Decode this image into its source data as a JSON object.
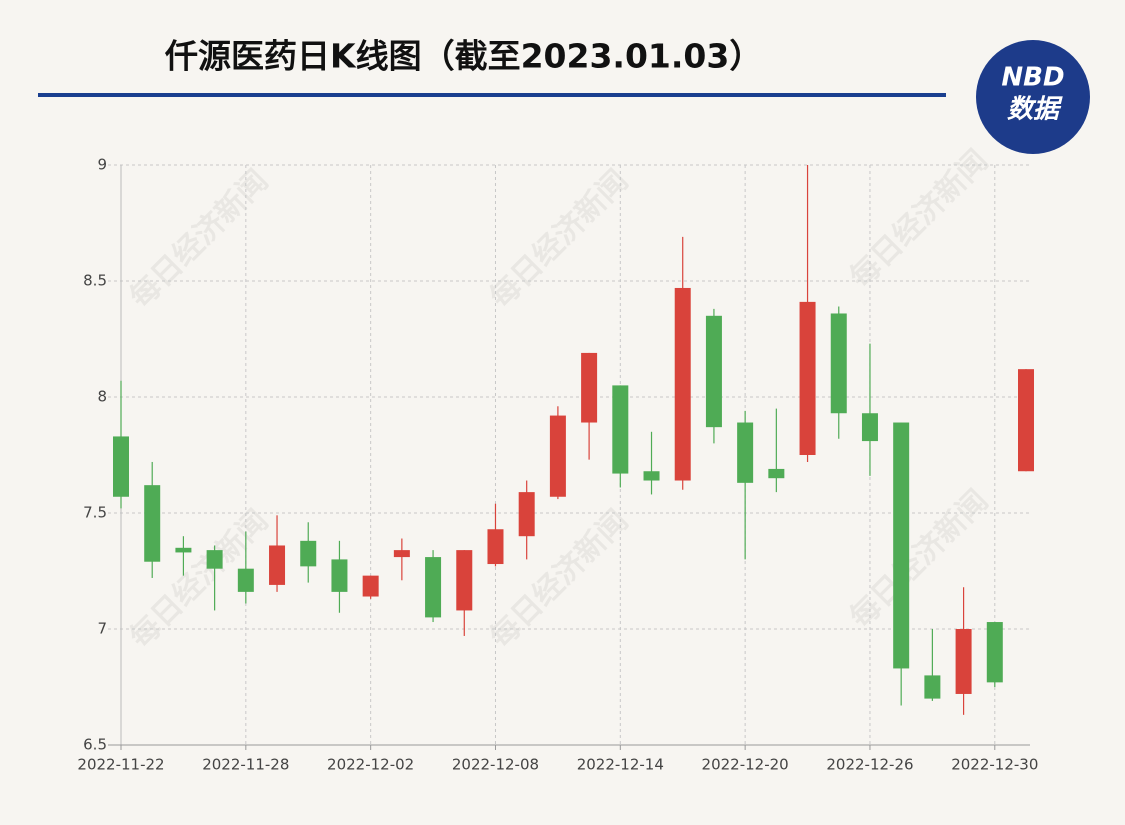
{
  "chart_data": {
    "type": "candlestick",
    "title": "仟源医药日K线图（截至2023.01.03）",
    "logo": {
      "top": "NBD",
      "bottom": "数据"
    },
    "watermark": "每日经济新闻",
    "categories": [
      "2022-11-22",
      null,
      null,
      null,
      "2022-11-28",
      null,
      null,
      null,
      "2022-12-02",
      null,
      null,
      null,
      "2022-12-08",
      null,
      null,
      null,
      "2022-12-14",
      null,
      null,
      null,
      "2022-12-20",
      null,
      null,
      null,
      "2022-12-26",
      null,
      null,
      null,
      "2022-12-30",
      null
    ],
    "open": [
      7.83,
      7.62,
      7.35,
      7.34,
      7.26,
      7.19,
      7.38,
      7.3,
      7.14,
      7.31,
      7.31,
      7.08,
      7.28,
      7.4,
      7.57,
      7.89,
      8.05,
      7.68,
      7.64,
      8.35,
      7.89,
      7.69,
      7.75,
      8.36,
      7.93,
      7.89,
      6.8,
      6.72,
      7.03,
      7.68
    ],
    "high": [
      8.07,
      7.72,
      7.4,
      7.36,
      7.42,
      7.49,
      7.46,
      7.38,
      7.23,
      7.39,
      7.34,
      7.34,
      7.54,
      7.64,
      7.96,
      8.19,
      8.05,
      7.85,
      8.69,
      8.38,
      7.94,
      7.95,
      9.0,
      8.39,
      8.23,
      7.89,
      7.0,
      7.18,
      7.03,
      8.12
    ],
    "low": [
      7.52,
      7.22,
      7.23,
      7.08,
      7.11,
      7.16,
      7.2,
      7.07,
      7.13,
      7.21,
      7.03,
      6.97,
      7.27,
      7.3,
      7.56,
      7.73,
      7.61,
      7.58,
      7.6,
      7.8,
      7.3,
      7.59,
      7.72,
      7.82,
      7.66,
      6.67,
      6.69,
      6.63,
      6.75,
      7.68
    ],
    "close": [
      7.57,
      7.29,
      7.33,
      7.26,
      7.16,
      7.36,
      7.27,
      7.16,
      7.23,
      7.34,
      7.05,
      7.34,
      7.43,
      7.59,
      7.92,
      8.19,
      7.67,
      7.64,
      8.47,
      7.87,
      7.63,
      7.65,
      8.41,
      7.93,
      7.81,
      6.83,
      6.7,
      7.0,
      6.77,
      8.12
    ],
    "up_color": "#d9433b",
    "down_color": "#4fab55",
    "ylim": [
      6.5,
      9
    ],
    "yticks": [
      6.5,
      7,
      7.5,
      8,
      8.5,
      9
    ],
    "grid": true
  }
}
